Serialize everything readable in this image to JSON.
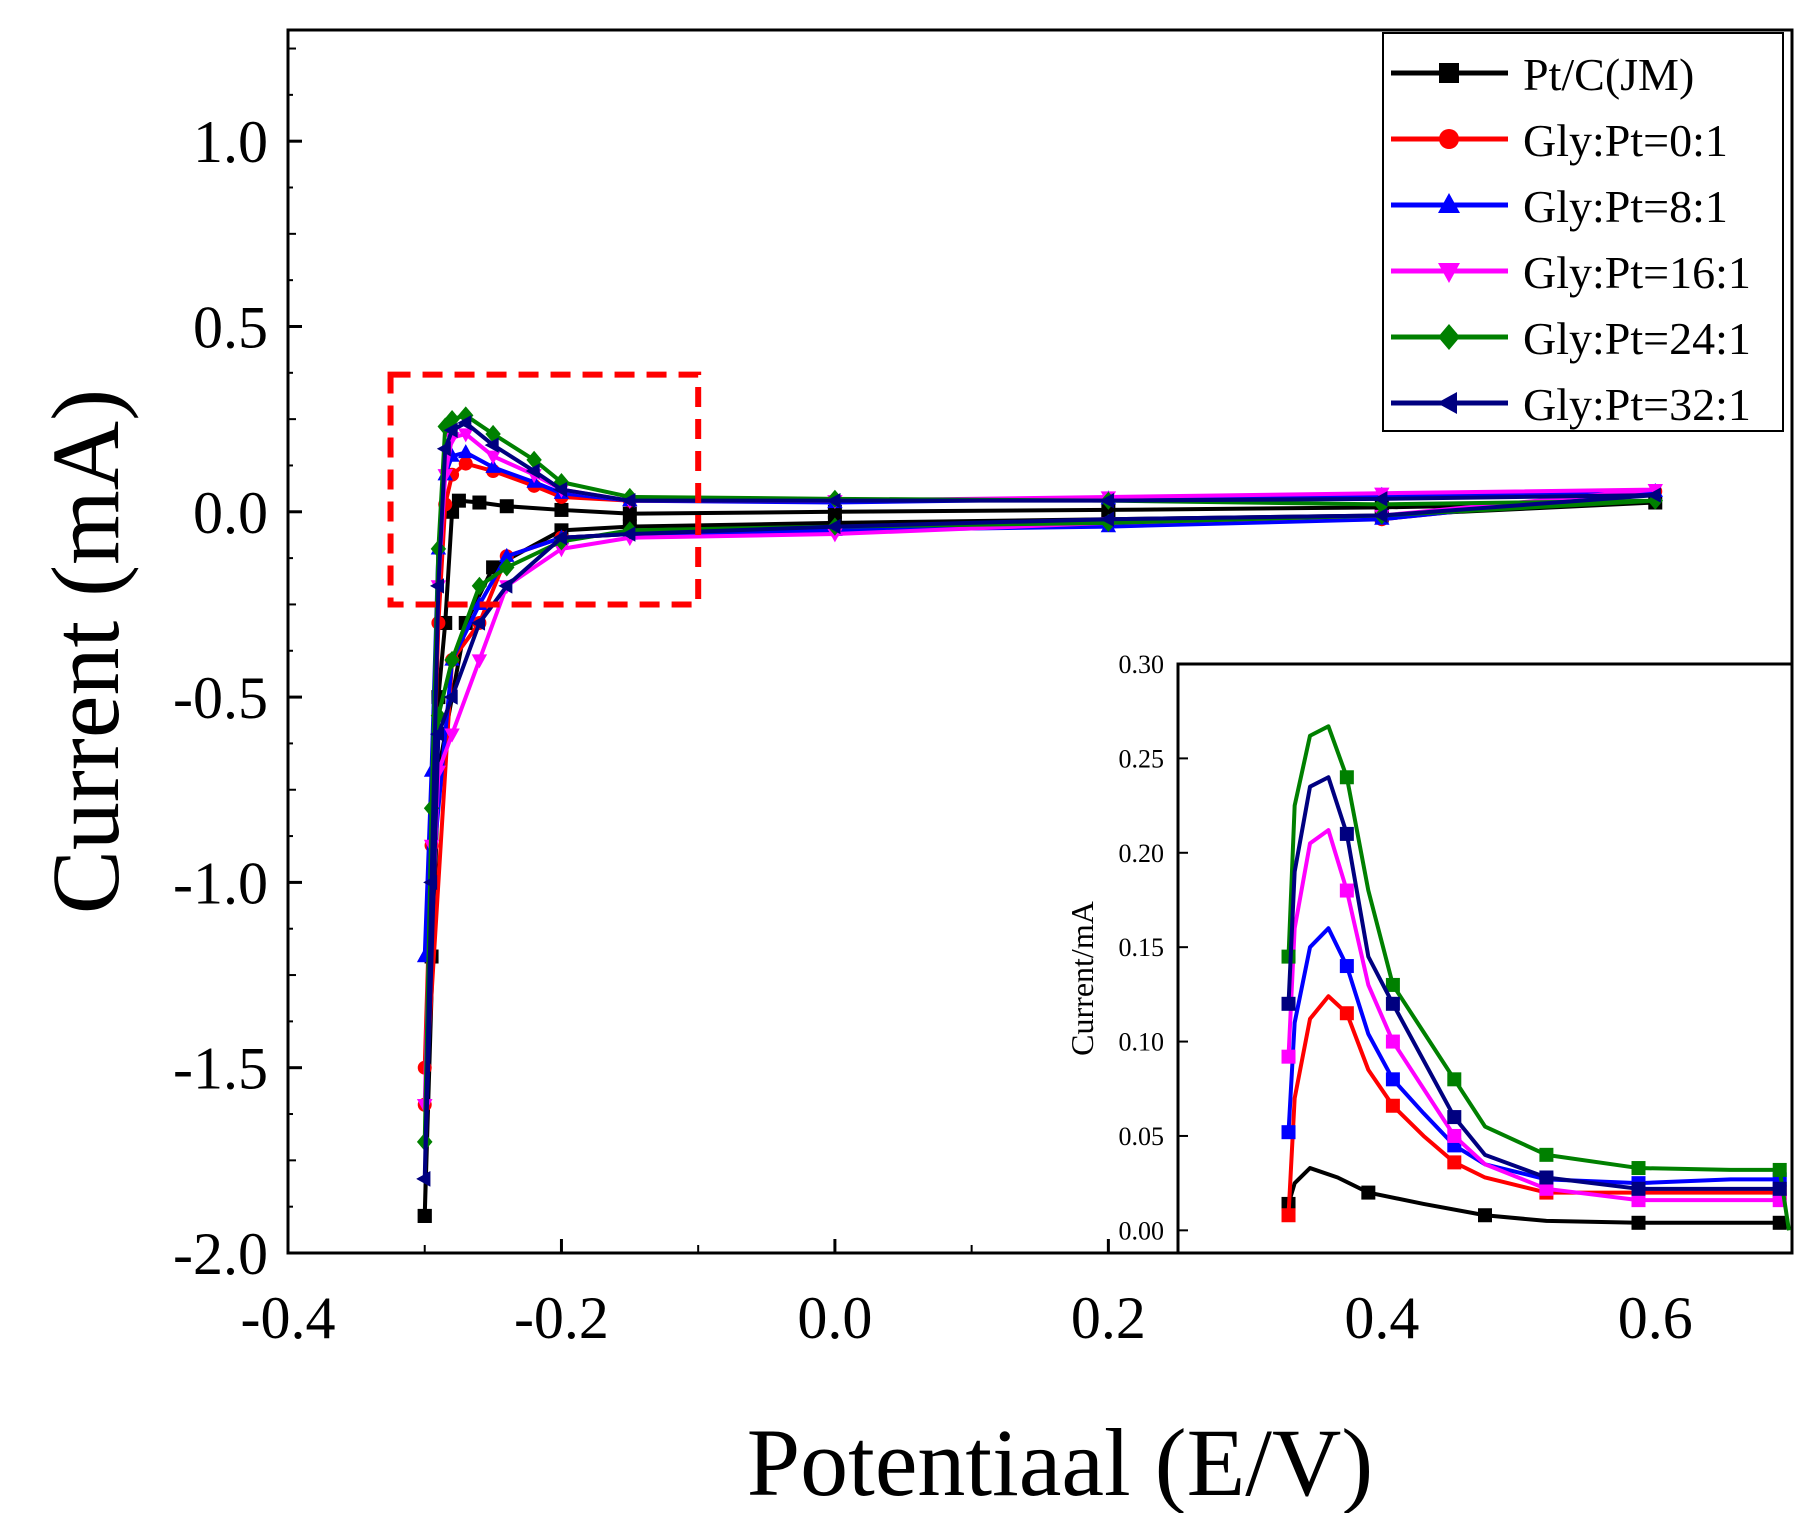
{
  "chart_data": [
    {
      "type": "line",
      "xlabel": "Potentiaal (E/V)",
      "ylabel": "Current (mA)",
      "xlim": [
        -0.4,
        0.7
      ],
      "ylim": [
        -2.0,
        1.3
      ],
      "x_ticks": [
        "-0.4",
        "-0.2",
        "0.0",
        "0.2",
        "0.4",
        "0.6"
      ],
      "y_ticks": [
        "-2.0",
        "-1.5",
        "-1.0",
        "-0.5",
        "0.0",
        "0.5",
        "1.0"
      ],
      "x_tick_values": [
        -0.4,
        -0.2,
        0.0,
        0.2,
        0.4,
        0.6
      ],
      "y_tick_values": [
        -2.0,
        -1.5,
        -1.0,
        -0.5,
        0.0,
        0.5,
        1.0
      ],
      "legend_position": "top-right",
      "highlight_box": {
        "x_range": [
          -0.325,
          -0.1
        ],
        "y_range": [
          -0.25,
          0.37
        ],
        "color": "#ff0000"
      },
      "series": [
        {
          "name": "Pt/C(JM)",
          "color": "#000000",
          "marker": "square",
          "forward": [
            [
              -0.3,
              -1.9
            ],
            [
              -0.295,
              -1.2
            ],
            [
              -0.29,
              -0.5
            ],
            [
              -0.285,
              -0.3
            ],
            [
              -0.28,
              0.0
            ],
            [
              -0.275,
              0.03
            ],
            [
              -0.26,
              0.025
            ],
            [
              -0.24,
              0.015
            ],
            [
              -0.2,
              0.005
            ],
            [
              -0.15,
              -0.005
            ],
            [
              0.0,
              0.0
            ],
            [
              0.2,
              0.005
            ],
            [
              0.4,
              0.012
            ],
            [
              0.6,
              0.025
            ]
          ],
          "reverse": [
            [
              0.6,
              0.025
            ],
            [
              0.4,
              -0.01
            ],
            [
              0.2,
              -0.02
            ],
            [
              0.0,
              -0.03
            ],
            [
              -0.15,
              -0.04
            ],
            [
              -0.2,
              -0.05
            ],
            [
              -0.25,
              -0.15
            ],
            [
              -0.27,
              -0.3
            ],
            [
              -0.29,
              -0.7
            ],
            [
              -0.3,
              -1.9
            ]
          ]
        },
        {
          "name": "Gly:Pt=0:1",
          "color": "#ff0000",
          "marker": "circle",
          "forward": [
            [
              -0.3,
              -1.5
            ],
            [
              -0.295,
              -0.9
            ],
            [
              -0.29,
              -0.3
            ],
            [
              -0.285,
              0.02
            ],
            [
              -0.28,
              0.1
            ],
            [
              -0.27,
              0.13
            ],
            [
              -0.25,
              0.11
            ],
            [
              -0.22,
              0.07
            ],
            [
              -0.2,
              0.04
            ],
            [
              -0.15,
              0.03
            ],
            [
              0.0,
              0.03
            ],
            [
              0.2,
              0.035
            ],
            [
              0.4,
              0.045
            ],
            [
              0.6,
              0.055
            ]
          ],
          "reverse": [
            [
              0.6,
              0.055
            ],
            [
              0.4,
              -0.02
            ],
            [
              0.2,
              -0.03
            ],
            [
              0.0,
              -0.05
            ],
            [
              -0.15,
              -0.06
            ],
            [
              -0.2,
              -0.07
            ],
            [
              -0.24,
              -0.12
            ],
            [
              -0.26,
              -0.3
            ],
            [
              -0.28,
              -0.4
            ],
            [
              -0.3,
              -1.6
            ]
          ]
        },
        {
          "name": "Gly:Pt=8:1",
          "color": "#0000ff",
          "marker": "triangle-up",
          "forward": [
            [
              -0.3,
              -1.2
            ],
            [
              -0.295,
              -0.7
            ],
            [
              -0.29,
              -0.1
            ],
            [
              -0.285,
              0.1
            ],
            [
              -0.28,
              0.15
            ],
            [
              -0.27,
              0.16
            ],
            [
              -0.25,
              0.12
            ],
            [
              -0.22,
              0.08
            ],
            [
              -0.2,
              0.05
            ],
            [
              -0.15,
              0.03
            ],
            [
              0.0,
              0.025
            ],
            [
              0.2,
              0.035
            ],
            [
              0.4,
              0.045
            ],
            [
              0.6,
              0.055
            ]
          ],
          "reverse": [
            [
              0.6,
              0.055
            ],
            [
              0.4,
              -0.02
            ],
            [
              0.2,
              -0.04
            ],
            [
              0.0,
              -0.05
            ],
            [
              -0.15,
              -0.06
            ],
            [
              -0.2,
              -0.07
            ],
            [
              -0.24,
              -0.12
            ],
            [
              -0.26,
              -0.25
            ],
            [
              -0.28,
              -0.4
            ],
            [
              -0.3,
              -1.2
            ]
          ]
        },
        {
          "name": "Gly:Pt=16:1",
          "color": "#ff00ff",
          "marker": "triangle-down",
          "forward": [
            [
              -0.3,
              -1.6
            ],
            [
              -0.295,
              -0.9
            ],
            [
              -0.29,
              -0.2
            ],
            [
              -0.285,
              0.1
            ],
            [
              -0.28,
              0.2
            ],
            [
              -0.27,
              0.21
            ],
            [
              -0.25,
              0.15
            ],
            [
              -0.22,
              0.1
            ],
            [
              -0.2,
              0.06
            ],
            [
              -0.15,
              0.03
            ],
            [
              0.0,
              0.03
            ],
            [
              0.2,
              0.04
            ],
            [
              0.4,
              0.05
            ],
            [
              0.6,
              0.06
            ]
          ],
          "reverse": [
            [
              0.6,
              0.06
            ],
            [
              0.4,
              -0.01
            ],
            [
              0.2,
              -0.03
            ],
            [
              0.0,
              -0.06
            ],
            [
              -0.15,
              -0.07
            ],
            [
              -0.2,
              -0.1
            ],
            [
              -0.24,
              -0.2
            ],
            [
              -0.26,
              -0.4
            ],
            [
              -0.28,
              -0.6
            ],
            [
              -0.29,
              -0.7
            ],
            [
              -0.3,
              -1.6
            ]
          ]
        },
        {
          "name": "Gly:Pt=24:1",
          "color": "#008000",
          "marker": "diamond",
          "forward": [
            [
              -0.3,
              -1.7
            ],
            [
              -0.295,
              -0.8
            ],
            [
              -0.29,
              -0.1
            ],
            [
              -0.285,
              0.23
            ],
            [
              -0.28,
              0.25
            ],
            [
              -0.27,
              0.26
            ],
            [
              -0.25,
              0.21
            ],
            [
              -0.22,
              0.14
            ],
            [
              -0.2,
              0.08
            ],
            [
              -0.15,
              0.04
            ],
            [
              0.0,
              0.035
            ],
            [
              0.2,
              0.03
            ],
            [
              0.4,
              0.02
            ],
            [
              0.6,
              0.03
            ]
          ],
          "reverse": [
            [
              0.6,
              0.03
            ],
            [
              0.4,
              -0.01
            ],
            [
              0.2,
              -0.03
            ],
            [
              0.0,
              -0.04
            ],
            [
              -0.15,
              -0.05
            ],
            [
              -0.2,
              -0.08
            ],
            [
              -0.24,
              -0.15
            ],
            [
              -0.26,
              -0.2
            ],
            [
              -0.28,
              -0.4
            ],
            [
              -0.29,
              -0.55
            ],
            [
              -0.3,
              -1.7
            ]
          ]
        },
        {
          "name": "Gly:Pt=32:1",
          "color": "#000080",
          "marker": "triangle-left",
          "forward": [
            [
              -0.3,
              -1.8
            ],
            [
              -0.295,
              -1.0
            ],
            [
              -0.29,
              -0.2
            ],
            [
              -0.285,
              0.17
            ],
            [
              -0.28,
              0.22
            ],
            [
              -0.27,
              0.24
            ],
            [
              -0.25,
              0.18
            ],
            [
              -0.22,
              0.11
            ],
            [
              -0.2,
              0.06
            ],
            [
              -0.15,
              0.03
            ],
            [
              0.0,
              0.03
            ],
            [
              0.2,
              0.03
            ],
            [
              0.4,
              0.035
            ],
            [
              0.6,
              0.045
            ]
          ],
          "reverse": [
            [
              0.6,
              0.045
            ],
            [
              0.4,
              -0.01
            ],
            [
              0.2,
              -0.02
            ],
            [
              0.0,
              -0.04
            ],
            [
              -0.15,
              -0.06
            ],
            [
              -0.2,
              -0.07
            ],
            [
              -0.24,
              -0.2
            ],
            [
              -0.26,
              -0.3
            ],
            [
              -0.28,
              -0.5
            ],
            [
              -0.29,
              -0.6
            ],
            [
              -0.3,
              -1.8
            ]
          ]
        }
      ]
    },
    {
      "type": "line",
      "xlabel": "",
      "ylabel": "Current/mA",
      "xlim": [
        0.0,
        1.0
      ],
      "ylim": [
        -0.012,
        0.3
      ],
      "y_ticks": [
        "0.00",
        "0.05",
        "0.10",
        "0.15",
        "0.20",
        "0.25",
        "0.30"
      ],
      "y_tick_values": [
        0.0,
        0.05,
        0.1,
        0.15,
        0.2,
        0.25,
        0.3
      ],
      "series": [
        {
          "name": "",
          "color": "#000000",
          "marker": "square",
          "x": [
            0.18,
            0.19,
            0.215,
            0.26,
            0.31,
            0.4,
            0.5,
            0.6,
            0.75,
            0.9,
            0.98
          ],
          "y": [
            0.014,
            0.025,
            0.033,
            0.028,
            0.02,
            0.014,
            0.008,
            0.005,
            0.004,
            0.004,
            0.004
          ]
        },
        {
          "name": "",
          "color": "#ff0000",
          "marker": "square",
          "x": [
            0.18,
            0.19,
            0.215,
            0.245,
            0.275,
            0.31,
            0.35,
            0.4,
            0.45,
            0.5,
            0.6,
            0.75,
            0.9,
            0.98
          ],
          "y": [
            0.008,
            0.07,
            0.112,
            0.124,
            0.115,
            0.085,
            0.066,
            0.05,
            0.036,
            0.028,
            0.02,
            0.02,
            0.02,
            0.02
          ]
        },
        {
          "name": "",
          "color": "#0000ff",
          "marker": "square",
          "x": [
            0.18,
            0.19,
            0.215,
            0.245,
            0.275,
            0.31,
            0.35,
            0.4,
            0.45,
            0.5,
            0.6,
            0.75,
            0.9,
            0.98
          ],
          "y": [
            0.052,
            0.11,
            0.15,
            0.16,
            0.14,
            0.104,
            0.08,
            0.062,
            0.045,
            0.035,
            0.027,
            0.025,
            0.027,
            0.027
          ]
        },
        {
          "name": "",
          "color": "#ff00ff",
          "marker": "square",
          "x": [
            0.18,
            0.19,
            0.215,
            0.245,
            0.275,
            0.31,
            0.35,
            0.4,
            0.45,
            0.5,
            0.6,
            0.75,
            0.9,
            0.98
          ],
          "y": [
            0.092,
            0.16,
            0.205,
            0.212,
            0.18,
            0.13,
            0.1,
            0.075,
            0.05,
            0.035,
            0.022,
            0.016,
            0.016,
            0.016
          ]
        },
        {
          "name": "",
          "color": "#008000",
          "marker": "square",
          "x": [
            0.18,
            0.19,
            0.215,
            0.245,
            0.275,
            0.31,
            0.35,
            0.4,
            0.45,
            0.5,
            0.6,
            0.75,
            0.9,
            0.98,
            0.995
          ],
          "y": [
            0.145,
            0.225,
            0.262,
            0.267,
            0.24,
            0.18,
            0.13,
            0.105,
            0.08,
            0.055,
            0.04,
            0.033,
            0.032,
            0.032,
            0.0
          ]
        },
        {
          "name": "",
          "color": "#000080",
          "marker": "square",
          "x": [
            0.18,
            0.19,
            0.215,
            0.245,
            0.275,
            0.31,
            0.35,
            0.4,
            0.45,
            0.5,
            0.6,
            0.75,
            0.9,
            0.98
          ],
          "y": [
            0.12,
            0.19,
            0.235,
            0.24,
            0.21,
            0.145,
            0.12,
            0.09,
            0.06,
            0.04,
            0.028,
            0.022,
            0.022,
            0.022
          ]
        }
      ]
    }
  ]
}
